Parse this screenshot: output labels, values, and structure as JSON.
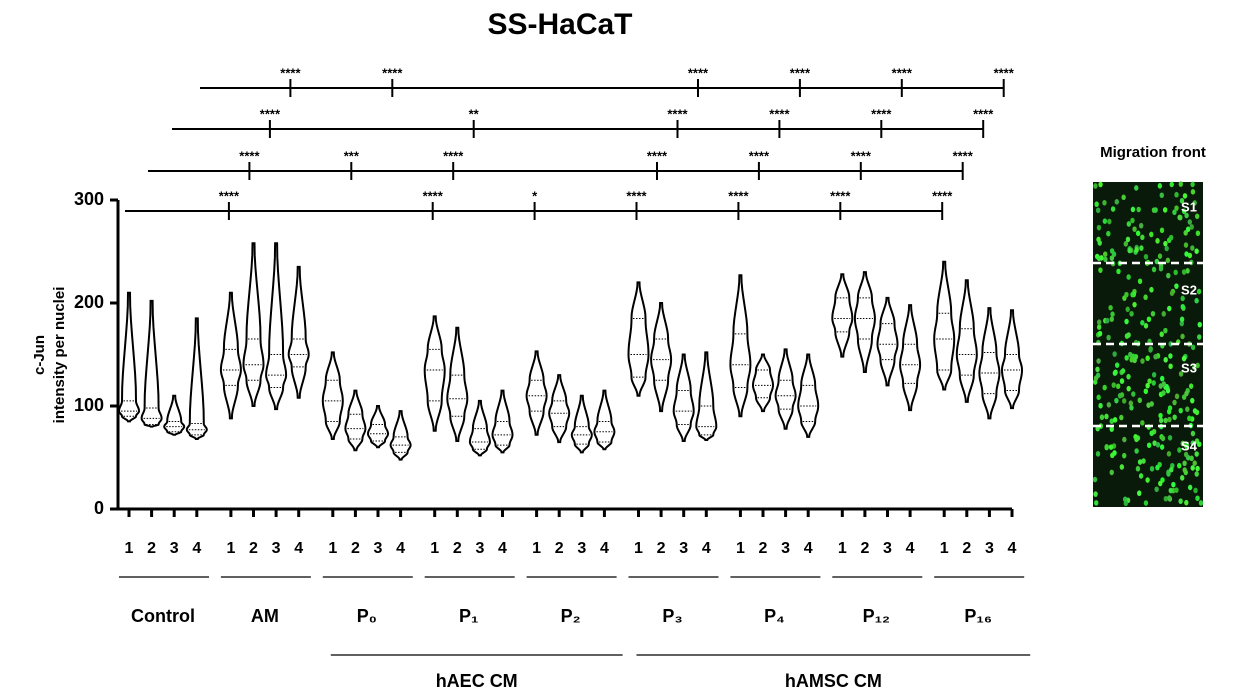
{
  "chart_data": {
    "type": "violin",
    "title": "SS-HaCaT",
    "ylabel": [
      "c-Jun",
      "intensity per nuclei"
    ],
    "ylim": [
      0,
      300
    ],
    "yticks": [
      0,
      100,
      200,
      300
    ],
    "color": "#000000",
    "fill": "#ffffff",
    "subcategories": [
      "1",
      "2",
      "3",
      "4"
    ],
    "groups": [
      {
        "name": "Control",
        "violins": [
          [
            85,
            90,
            95,
            105,
            210
          ],
          [
            80,
            82,
            88,
            98,
            202
          ],
          [
            72,
            75,
            80,
            85,
            110
          ],
          [
            68,
            72,
            77,
            83,
            185
          ]
        ]
      },
      {
        "name": "AM",
        "violins": [
          [
            88,
            120,
            135,
            155,
            210
          ],
          [
            100,
            125,
            140,
            165,
            258
          ],
          [
            97,
            118,
            130,
            150,
            258
          ],
          [
            108,
            138,
            150,
            165,
            235
          ]
        ]
      },
      {
        "name": "P₀",
        "violins": [
          [
            68,
            85,
            105,
            125,
            152
          ],
          [
            57,
            68,
            78,
            92,
            115
          ],
          [
            60,
            66,
            73,
            82,
            100
          ],
          [
            48,
            55,
            62,
            70,
            95
          ]
        ]
      },
      {
        "name": "P₁",
        "violins": [
          [
            76,
            105,
            135,
            155,
            187
          ],
          [
            66,
            90,
            107,
            130,
            176
          ],
          [
            52,
            58,
            65,
            78,
            105
          ],
          [
            55,
            62,
            72,
            85,
            115
          ]
        ]
      },
      {
        "name": "P₂",
        "violins": [
          [
            72,
            95,
            110,
            125,
            153
          ],
          [
            65,
            80,
            93,
            105,
            130
          ],
          [
            55,
            63,
            72,
            80,
            110
          ],
          [
            58,
            65,
            75,
            85,
            115
          ]
        ]
      },
      {
        "name": "P₃",
        "violins": [
          [
            110,
            128,
            150,
            185,
            220
          ],
          [
            95,
            125,
            145,
            165,
            200
          ],
          [
            66,
            82,
            95,
            115,
            150
          ],
          [
            67,
            72,
            80,
            100,
            152
          ]
        ]
      },
      {
        "name": "P₄",
        "violins": [
          [
            90,
            118,
            140,
            170,
            227
          ],
          [
            95,
            108,
            120,
            135,
            150
          ],
          [
            78,
            97,
            110,
            125,
            155
          ],
          [
            70,
            85,
            100,
            120,
            150
          ]
        ]
      },
      {
        "name": "P₁₂",
        "violins": [
          [
            148,
            172,
            185,
            205,
            228
          ],
          [
            133,
            165,
            185,
            205,
            230
          ],
          [
            120,
            145,
            160,
            180,
            205
          ],
          [
            96,
            122,
            140,
            160,
            198
          ]
        ]
      },
      {
        "name": "P₁₆",
        "violins": [
          [
            116,
            135,
            165,
            190,
            240
          ],
          [
            104,
            130,
            150,
            175,
            222
          ],
          [
            88,
            112,
            132,
            152,
            195
          ],
          [
            98,
            115,
            135,
            150,
            193
          ]
        ]
      }
    ],
    "supergroups": [
      "hAEC CM",
      "hAMSC CM"
    ],
    "significance": [
      [
        "****",
        "****",
        "*",
        "****",
        "****",
        "****",
        "****"
      ],
      [
        "****",
        "***",
        "****",
        "****",
        "****",
        "****",
        "****"
      ],
      [
        "****",
        "**",
        "****",
        "****",
        "****",
        "****"
      ],
      [
        "****",
        "****",
        "****",
        "****",
        "****",
        "****"
      ]
    ],
    "inset": {
      "title": "Migration front",
      "labels": [
        "S1",
        "S2",
        "S3",
        "S4"
      ]
    }
  }
}
